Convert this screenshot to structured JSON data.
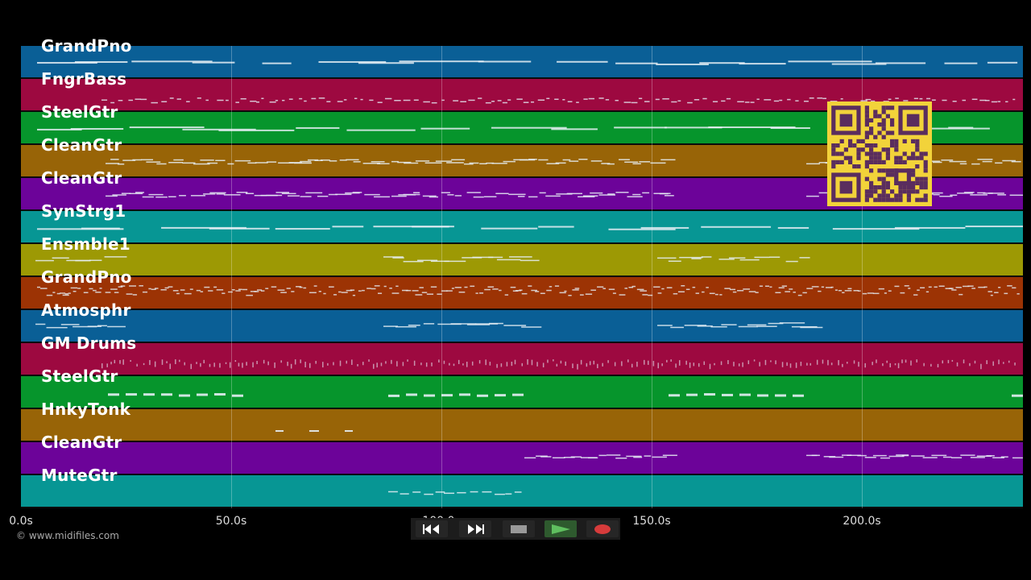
{
  "tracks": [
    {
      "name": "GrandPno",
      "color": "#0a5f96",
      "style": "long"
    },
    {
      "name": "FngrBass",
      "color": "#9d0940",
      "style": "dashes"
    },
    {
      "name": "SteelGtr",
      "color": "#06952c",
      "style": "long"
    },
    {
      "name": "CleanGtr",
      "color": "#986407",
      "style": "phrases"
    },
    {
      "name": "CleanGtr",
      "color": "#6c0399",
      "style": "phrases"
    },
    {
      "name": "SynStrg1",
      "color": "#079694",
      "style": "long"
    },
    {
      "name": "Ensmble1",
      "color": "#9d9904",
      "style": "sparse"
    },
    {
      "name": "GrandPno",
      "color": "#9c3304",
      "style": "dense"
    },
    {
      "name": "Atmosphr",
      "color": "#0a5f96",
      "style": "sparse"
    },
    {
      "name": "GM Drums",
      "color": "#9d0940",
      "style": "dots"
    },
    {
      "name": "SteelGtr",
      "color": "#06952c",
      "style": "blocks"
    },
    {
      "name": "HnkyTonk",
      "color": "#986407",
      "style": "few"
    },
    {
      "name": "CleanGtr",
      "color": "#6c0399",
      "style": "phrases2"
    },
    {
      "name": "MuteGtr",
      "color": "#079694",
      "style": "small"
    }
  ],
  "timeline": {
    "ticks": [
      "0.0s",
      "50.0s",
      "100.0s",
      "150.0s",
      "200.0s"
    ],
    "tick_seconds": [
      0,
      50,
      100,
      150,
      200
    ],
    "duration_seconds": 238.5
  },
  "copyright": "© www.midifiles.com",
  "controls": [
    {
      "name": "rewind-icon"
    },
    {
      "name": "fast-forward-icon"
    },
    {
      "name": "stop-icon"
    },
    {
      "name": "play-icon"
    },
    {
      "name": "record-icon"
    }
  ],
  "qr_icon": "qr-code-icon"
}
